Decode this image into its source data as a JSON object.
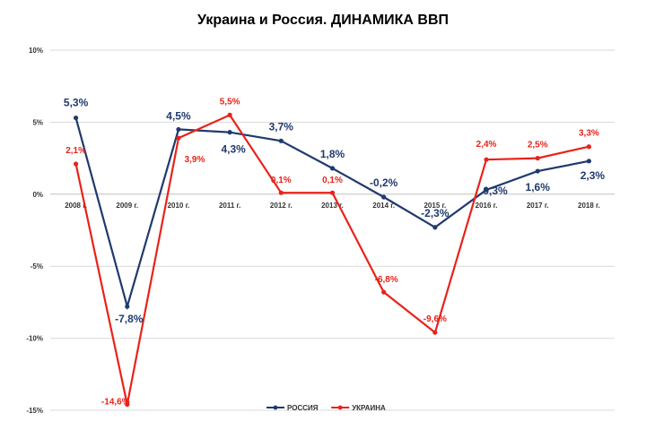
{
  "chart_data": {
    "type": "line",
    "title": "Украина и Россия. ДИНАМИКА ВВП",
    "categories": [
      "2008 г.",
      "2009 г.",
      "2010 г.",
      "2011 г.",
      "2012 г.",
      "2013 г.",
      "2014 г.",
      "2015 г.",
      "2016 г.",
      "2017 г.",
      "2018 г."
    ],
    "ylim": [
      -15,
      10
    ],
    "yticks": [
      10,
      5,
      0,
      -5,
      -10,
      -15
    ],
    "ytick_labels": [
      "10%",
      "5%",
      "0%",
      "-5%",
      "-10%",
      "-15%"
    ],
    "series": [
      {
        "name": "РОССИЯ",
        "color": "#1f3a6e",
        "values": [
          5.3,
          -7.8,
          4.5,
          4.3,
          3.7,
          1.8,
          -0.2,
          -2.3,
          0.3,
          1.6,
          2.3
        ],
        "labels": [
          "5,3%",
          "-7,8%",
          "4,5%",
          "4,3%",
          "3,7%",
          "1,8%",
          "-0,2%",
          "-2,3%",
          "0,3%",
          "1,6%",
          "2,3%"
        ]
      },
      {
        "name": "УКРАИНА",
        "color": "#e8231a",
        "values": [
          2.1,
          -14.6,
          3.9,
          5.5,
          0.1,
          0.1,
          -6.8,
          -9.6,
          2.4,
          2.5,
          3.3
        ],
        "labels": [
          "2,1%",
          "-14,6%",
          "3,9%",
          "5,5%",
          "0,1%",
          "0,1%",
          "-6,8%",
          "-9,6%",
          "2,4%",
          "2,5%",
          "3,3%"
        ]
      }
    ],
    "legend_position": "bottom-center",
    "grid": true
  }
}
